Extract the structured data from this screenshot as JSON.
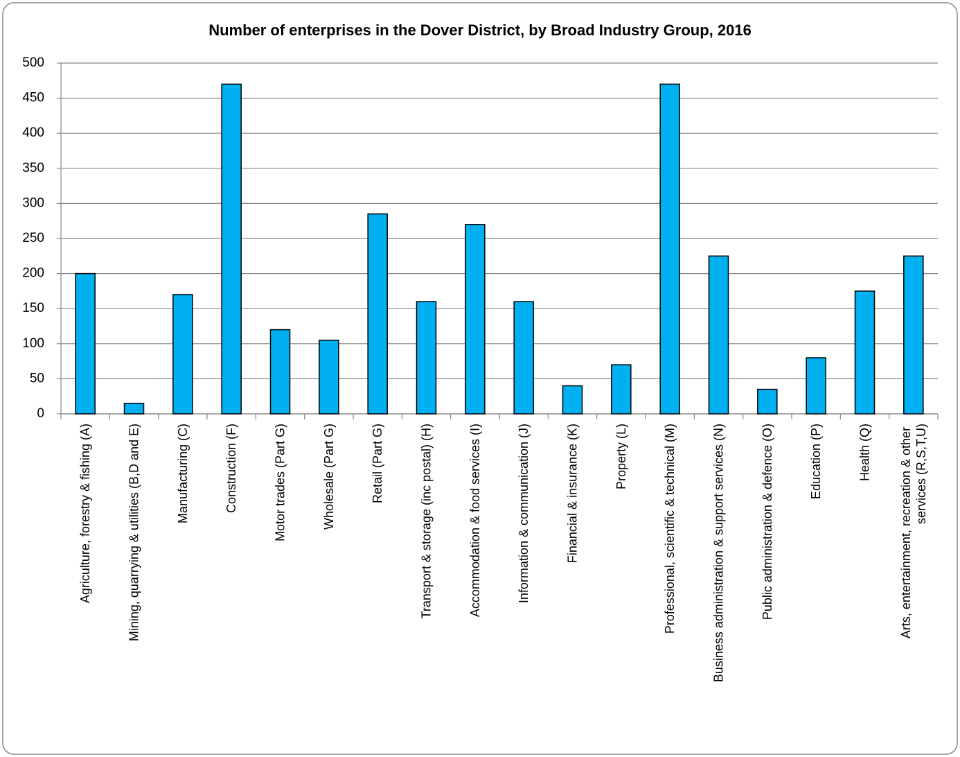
{
  "chart_data": {
    "type": "bar",
    "title": "Number of enterprises in the Dover District, by Broad Industry Group, 2016",
    "categories": [
      "Agriculture, forestry & fishing (A)",
      "Mining, quarrying & utilities (B,D and E)",
      "Manufacturing (C)",
      "Construction (F)",
      "Motor trades (Part G)",
      "Wholesale (Part G)",
      "Retail (Part G)",
      "Transport & storage (inc postal) (H)",
      "Accommodation & food services (I)",
      "Information & communication (J)",
      "Financial & insurance (K)",
      "Property (L)",
      "Professional, scientific & technical (M)",
      "Business administration & support services (N)",
      "Public administration & defence (O)",
      "Education (P)",
      "Health (Q)",
      "Arts, entertainment, recreation & other services (R,S,T,U)"
    ],
    "values": [
      200,
      15,
      170,
      470,
      120,
      105,
      285,
      160,
      270,
      160,
      40,
      70,
      470,
      225,
      35,
      80,
      175,
      225
    ],
    "color": "#00b0f0",
    "ylim": [
      0,
      500
    ],
    "yticks": [
      0,
      50,
      100,
      150,
      200,
      250,
      300,
      350,
      400,
      450,
      500
    ],
    "grid": true
  }
}
